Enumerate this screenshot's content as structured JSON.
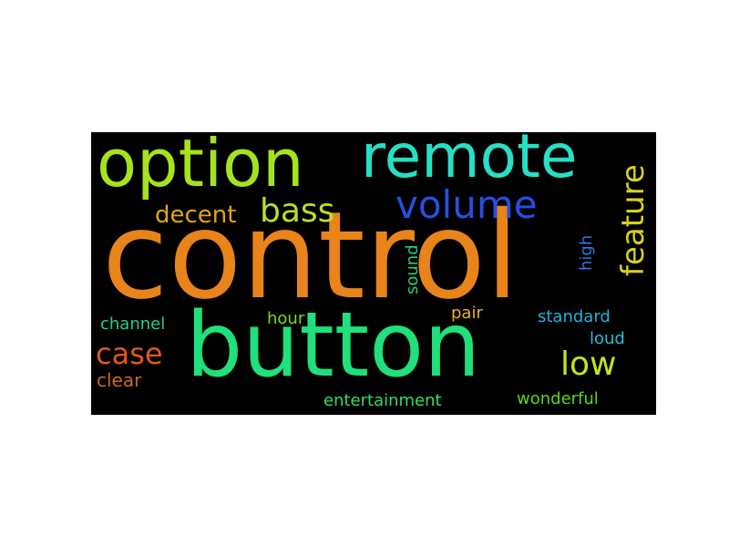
{
  "words": [
    {
      "text": "control",
      "color": "#e8841a"
    },
    {
      "text": "button",
      "color": "#1fe07a"
    },
    {
      "text": "option",
      "color": "#a6e21e"
    },
    {
      "text": "remote",
      "color": "#25e0c6"
    },
    {
      "text": "volume",
      "color": "#2550e0"
    },
    {
      "text": "feature",
      "color": "#d7d21c"
    },
    {
      "text": "bass",
      "color": "#bce01e"
    },
    {
      "text": "decent",
      "color": "#e0a41c"
    },
    {
      "text": "case",
      "color": "#e0581a"
    },
    {
      "text": "low",
      "color": "#c6e21e"
    },
    {
      "text": "channel",
      "color": "#22d08c"
    },
    {
      "text": "clear",
      "color": "#cc6a1c"
    },
    {
      "text": "hour",
      "color": "#84d61e"
    },
    {
      "text": "pair",
      "color": "#e8b41e"
    },
    {
      "text": "standard",
      "color": "#22b2d8"
    },
    {
      "text": "loud",
      "color": "#22c0d8"
    },
    {
      "text": "sound",
      "color": "#28cc78"
    },
    {
      "text": "high",
      "color": "#2a7ae0"
    },
    {
      "text": "entertainment",
      "color": "#36da6a"
    },
    {
      "text": "wonderful",
      "color": "#5cd61e"
    }
  ]
}
